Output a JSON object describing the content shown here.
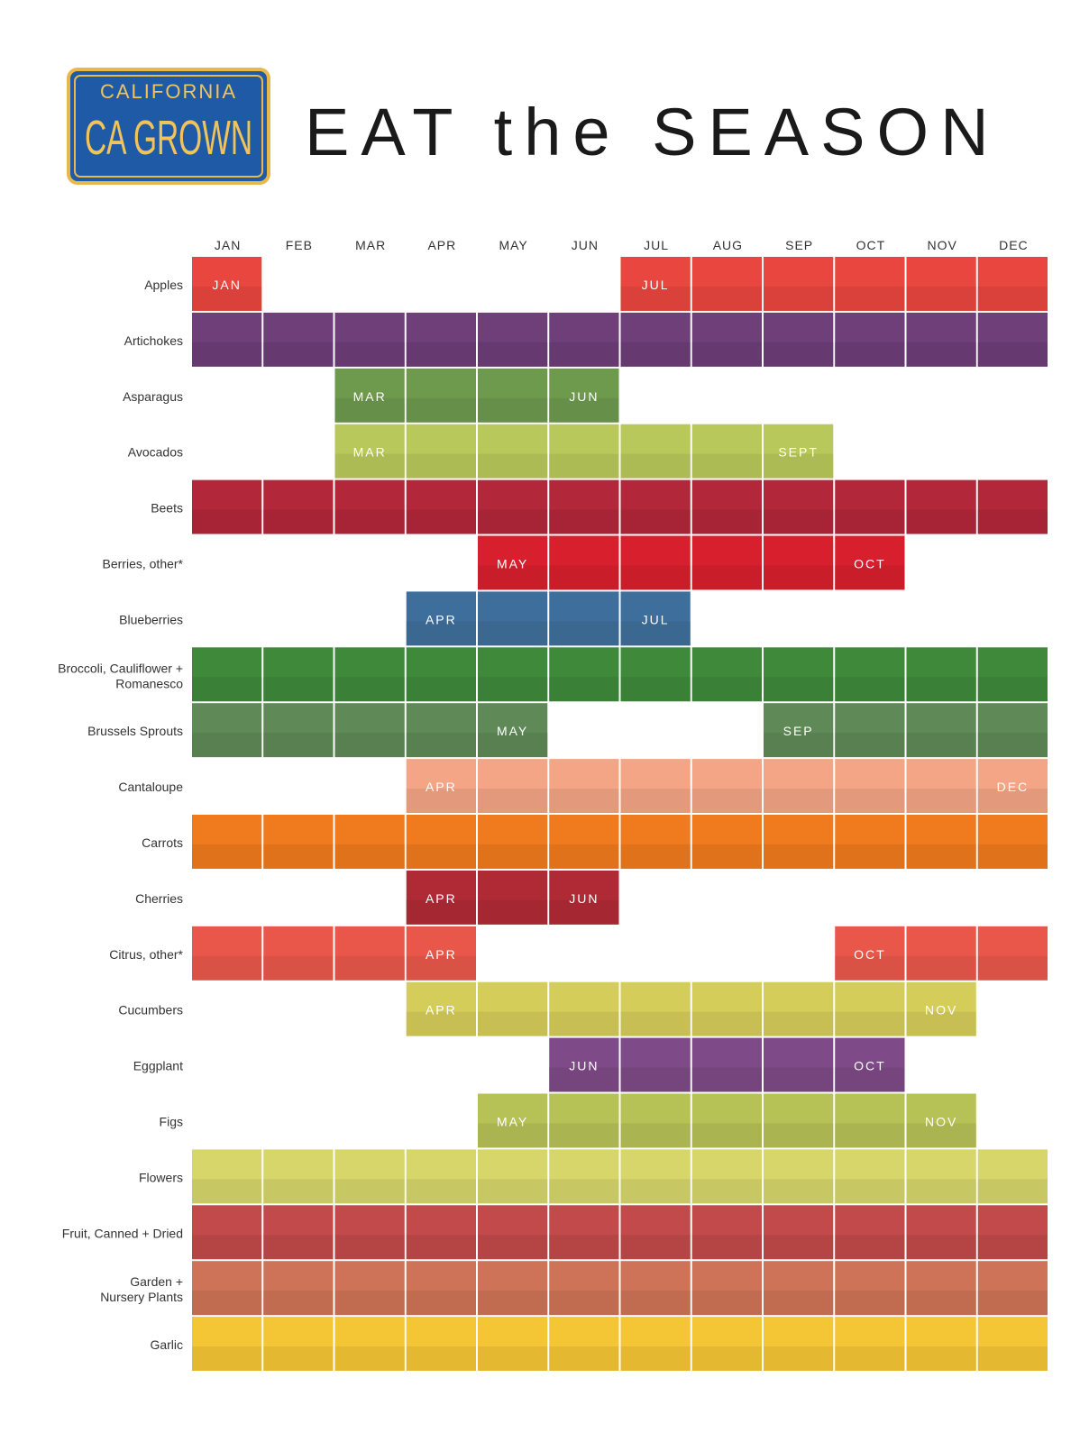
{
  "plate": {
    "state": "CALIFORNIA",
    "text": "CA GROWN",
    "colors": {
      "background": "#1f5aa6",
      "border": "#e8b84a",
      "text": "#f1c45a"
    }
  },
  "title": "EAT the SEASON",
  "chart_data": {
    "type": "table",
    "columns": [
      "JAN",
      "FEB",
      "MAR",
      "APR",
      "MAY",
      "JUN",
      "JUL",
      "AUG",
      "SEP",
      "OCT",
      "NOV",
      "DEC"
    ],
    "rows": [
      {
        "name": "Apples",
        "months": [
          1,
          7,
          8,
          9,
          10,
          11,
          12
        ],
        "labels": {
          "1": "JAN",
          "7": "JUL"
        },
        "color": "#e8463e"
      },
      {
        "name": "Artichokes",
        "months": [
          1,
          2,
          3,
          4,
          5,
          6,
          7,
          8,
          9,
          10,
          11,
          12
        ],
        "labels": {},
        "color": "#6e3f78"
      },
      {
        "name": "Asparagus",
        "months": [
          3,
          4,
          5,
          6
        ],
        "labels": {
          "3": "MAR",
          "6": "JUN"
        },
        "color": "#6e9a4e"
      },
      {
        "name": "Avocados",
        "months": [
          3,
          4,
          5,
          6,
          7,
          8,
          9
        ],
        "labels": {
          "3": "MAR",
          "9": "SEPT"
        },
        "color": "#b9c85a"
      },
      {
        "name": "Beets",
        "months": [
          1,
          2,
          3,
          4,
          5,
          6,
          7,
          8,
          9,
          10,
          11,
          12
        ],
        "labels": {},
        "color": "#b2273a"
      },
      {
        "name": "Berries, other*",
        "months": [
          5,
          6,
          7,
          8,
          9,
          10
        ],
        "labels": {
          "5": "MAY",
          "10": "OCT"
        },
        "color": "#d81f2e"
      },
      {
        "name": "Blueberries",
        "months": [
          4,
          5,
          6,
          7
        ],
        "labels": {
          "4": "APR",
          "7": "JUL"
        },
        "color": "#3e6f9c"
      },
      {
        "name": "Broccoli, Cauliflower + Romanesco",
        "months": [
          1,
          2,
          3,
          4,
          5,
          6,
          7,
          8,
          9,
          10,
          11,
          12
        ],
        "labels": {},
        "color": "#3e8a3a"
      },
      {
        "name": "Brussels Sprouts",
        "months": [
          1,
          2,
          3,
          4,
          5,
          9,
          10,
          11,
          12
        ],
        "labels": {
          "5": "MAY",
          "9": "SEP"
        },
        "color": "#5f8a57"
      },
      {
        "name": "Cantaloupe",
        "months": [
          4,
          5,
          6,
          7,
          8,
          9,
          10,
          11,
          12
        ],
        "labels": {
          "4": "APR",
          "12": "DEC"
        },
        "color": "#f3a585"
      },
      {
        "name": "Carrots",
        "months": [
          1,
          2,
          3,
          4,
          5,
          6,
          7,
          8,
          9,
          10,
          11,
          12
        ],
        "labels": {},
        "color": "#f07a1e"
      },
      {
        "name": "Cherries",
        "months": [
          4,
          5,
          6
        ],
        "labels": {
          "4": "APR",
          "6": "JUN"
        },
        "color": "#b02a36"
      },
      {
        "name": "Citrus, other*",
        "months": [
          1,
          2,
          3,
          4,
          10,
          11,
          12
        ],
        "labels": {
          "4": "APR",
          "10": "OCT"
        },
        "color": "#e9574a"
      },
      {
        "name": "Cucumbers",
        "months": [
          4,
          5,
          6,
          7,
          8,
          9,
          10,
          11
        ],
        "labels": {
          "4": "APR",
          "11": "NOV"
        },
        "color": "#d4cd5a"
      },
      {
        "name": "Eggplant",
        "months": [
          6,
          7,
          8,
          9,
          10
        ],
        "labels": {
          "6": "JUN",
          "10": "OCT"
        },
        "color": "#7e4a87"
      },
      {
        "name": "Figs",
        "months": [
          5,
          6,
          7,
          8,
          9,
          10,
          11
        ],
        "labels": {
          "5": "MAY",
          "11": "NOV"
        },
        "color": "#b6c156"
      },
      {
        "name": "Flowers",
        "months": [
          1,
          2,
          3,
          4,
          5,
          6,
          7,
          8,
          9,
          10,
          11,
          12
        ],
        "labels": {},
        "color": "#d6d66a"
      },
      {
        "name": "Fruit, Canned + Dried",
        "months": [
          1,
          2,
          3,
          4,
          5,
          6,
          7,
          8,
          9,
          10,
          11,
          12
        ],
        "labels": {},
        "color": "#c24a4a"
      },
      {
        "name": "Garden + Nursery Plants",
        "months": [
          1,
          2,
          3,
          4,
          5,
          6,
          7,
          8,
          9,
          10,
          11,
          12
        ],
        "labels": {},
        "color": "#cf7358"
      },
      {
        "name": "Garlic",
        "months": [
          1,
          2,
          3,
          4,
          5,
          6,
          7,
          8,
          9,
          10,
          11,
          12
        ],
        "labels": {},
        "color": "#f4c534"
      }
    ]
  }
}
